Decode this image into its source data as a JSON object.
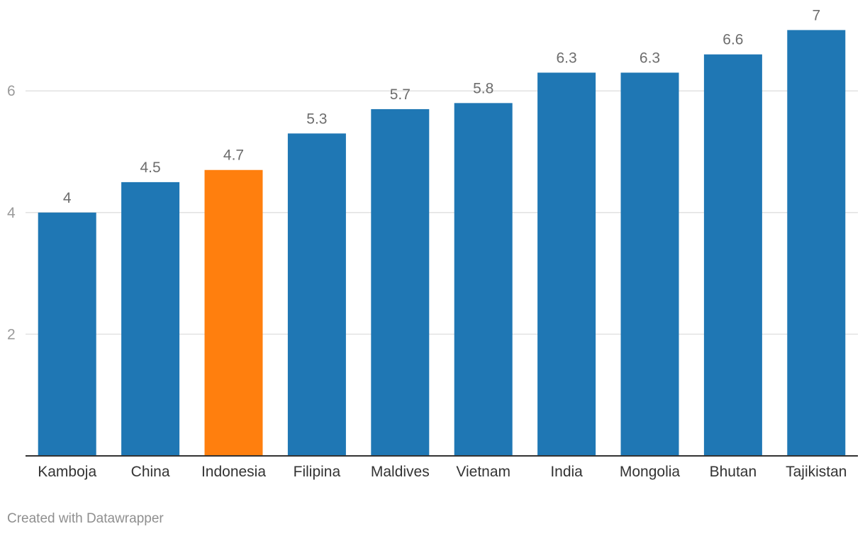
{
  "chart_data": {
    "type": "bar",
    "categories": [
      "Kamboja",
      "China",
      "Indonesia",
      "Filipina",
      "Maldives",
      "Vietnam",
      "India",
      "Mongolia",
      "Bhutan",
      "Tajikistan"
    ],
    "values": [
      4,
      4.5,
      4.7,
      5.3,
      5.7,
      5.8,
      6.3,
      6.3,
      6.6,
      7
    ],
    "data_labels": [
      "4",
      "4.5",
      "4.7",
      "5.3",
      "5.7",
      "5.8",
      "6.3",
      "6.3",
      "6.6",
      "7"
    ],
    "highlight_index": 2,
    "colors": {
      "bar": "#1f77b4",
      "highlight": "#ff7f0e",
      "grid": "#e2e2e2",
      "baseline": "#333333"
    },
    "ylim": [
      0,
      7
    ],
    "yticks": [
      2,
      4,
      6
    ],
    "ytick_labels": [
      "2",
      "4",
      "6"
    ],
    "grid": true,
    "title": "",
    "xlabel": "",
    "ylabel": ""
  },
  "footer": {
    "credit": "Created with Datawrapper"
  }
}
